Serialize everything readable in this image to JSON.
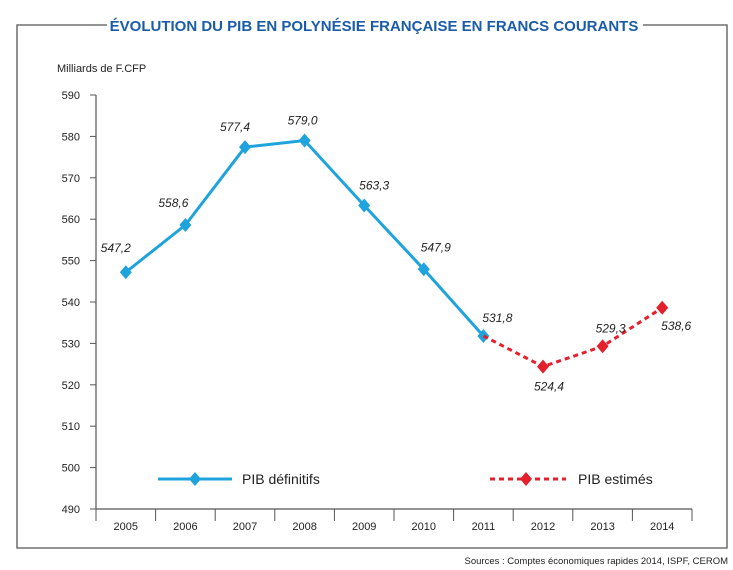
{
  "chart_data": {
    "type": "line",
    "title": "ÉVOLUTION DU PIB EN POLYNÉSIE FRANÇAISE EN FRANCS COURANTS",
    "ylabel": "Milliards de F.CFP",
    "xlabel": "",
    "ylim": [
      490,
      590
    ],
    "yticks": [
      "490",
      "500",
      "510",
      "520",
      "530",
      "540",
      "550",
      "560",
      "570",
      "580",
      "590"
    ],
    "categories": [
      "2005",
      "2006",
      "2007",
      "2008",
      "2009",
      "2010",
      "2011",
      "2012",
      "2013",
      "2014"
    ],
    "series": [
      {
        "name": "PIB définitifs",
        "color": "#1fa3dc",
        "style": "solid",
        "x": [
          "2005",
          "2006",
          "2007",
          "2008",
          "2009",
          "2010",
          "2011"
        ],
        "values": [
          547.2,
          558.6,
          577.4,
          579.0,
          563.3,
          547.9,
          531.8
        ],
        "labels": [
          "547,2",
          "558,6",
          "577,4",
          "579,0",
          "563,3",
          "547,9",
          "531,8"
        ]
      },
      {
        "name": "PIB estimés",
        "color": "#e3202b",
        "style": "dashed",
        "x": [
          "2011",
          "2012",
          "2013",
          "2014"
        ],
        "values": [
          531.8,
          524.4,
          529.3,
          538.6
        ],
        "labels": [
          null,
          "524,4",
          "529,3",
          "538,6"
        ]
      }
    ],
    "legend": "bottom-inside",
    "grid": false,
    "source": "Sources : Comptes économiques rapides 2014, ISPF, CEROM"
  },
  "colors": {
    "title": "#1a5ca8",
    "frame": "#555555",
    "axis": "#555555"
  }
}
